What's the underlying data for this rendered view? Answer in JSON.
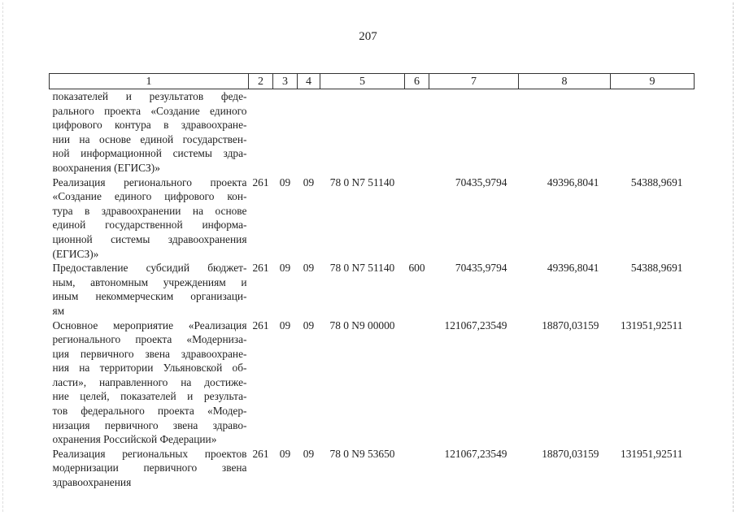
{
  "page_number": "207",
  "header": [
    "1",
    "2",
    "3",
    "4",
    "5",
    "6",
    "7",
    "8",
    "9"
  ],
  "rows": [
    {
      "lines": [
        "показателей и результатов феде-",
        "рального проекта «Создание единого",
        "цифрового контура в здравоохране-",
        "нии на основе единой государствен-",
        "ной информационной системы здра-",
        "воохранения (ЕГИСЗ)»"
      ],
      "c2": "",
      "c3": "",
      "c4": "",
      "c5": "",
      "c6": "",
      "c7": "",
      "c8": "",
      "c9": ""
    },
    {
      "lines": [
        "Реализация регионального проекта",
        "«Создание единого цифрового кон-",
        "тура в здравоохранении на основе",
        "единой государственной информа-",
        "ционной системы здравоохранения",
        "(ЕГИСЗ)»"
      ],
      "c2": "261",
      "c3": "09",
      "c4": "09",
      "c5": "78 0 N7 51140",
      "c6": "",
      "c7": "70435,9794",
      "c8": "49396,8041",
      "c9": "54388,9691"
    },
    {
      "lines": [
        "Предоставление субсидий бюджет-",
        "ным, автономным учреждениям и",
        "иным некоммерческим организаци-",
        "ям"
      ],
      "c2": "261",
      "c3": "09",
      "c4": "09",
      "c5": "78 0 N7 51140",
      "c6": "600",
      "c7": "70435,9794",
      "c8": "49396,8041",
      "c9": "54388,9691"
    },
    {
      "lines": [
        "Основное мероприятие «Реализация",
        "регионального проекта «Модерниза-",
        "ция первичного звена здравоохране-",
        "ния на территории Ульяновской об-",
        "ласти», направленного на достиже-",
        "ние целей, показателей и результа-",
        "тов федерального проекта «Модер-",
        "низация первичного звена здраво-",
        "охранения Российской Федерации»"
      ],
      "c2": "261",
      "c3": "09",
      "c4": "09",
      "c5": "78 0 N9 00000",
      "c6": "",
      "c7": "121067,23549",
      "c8": "18870,03159",
      "c9": "131951,92511"
    },
    {
      "lines": [
        "Реализация региональных проектов",
        "модернизации первичного звена",
        "здравоохранения"
      ],
      "c2": "261",
      "c3": "09",
      "c4": "09",
      "c5": "78 0 N9 53650",
      "c6": "",
      "c7": "121067,23549",
      "c8": "18870,03159",
      "c9": "131951,92511"
    }
  ]
}
